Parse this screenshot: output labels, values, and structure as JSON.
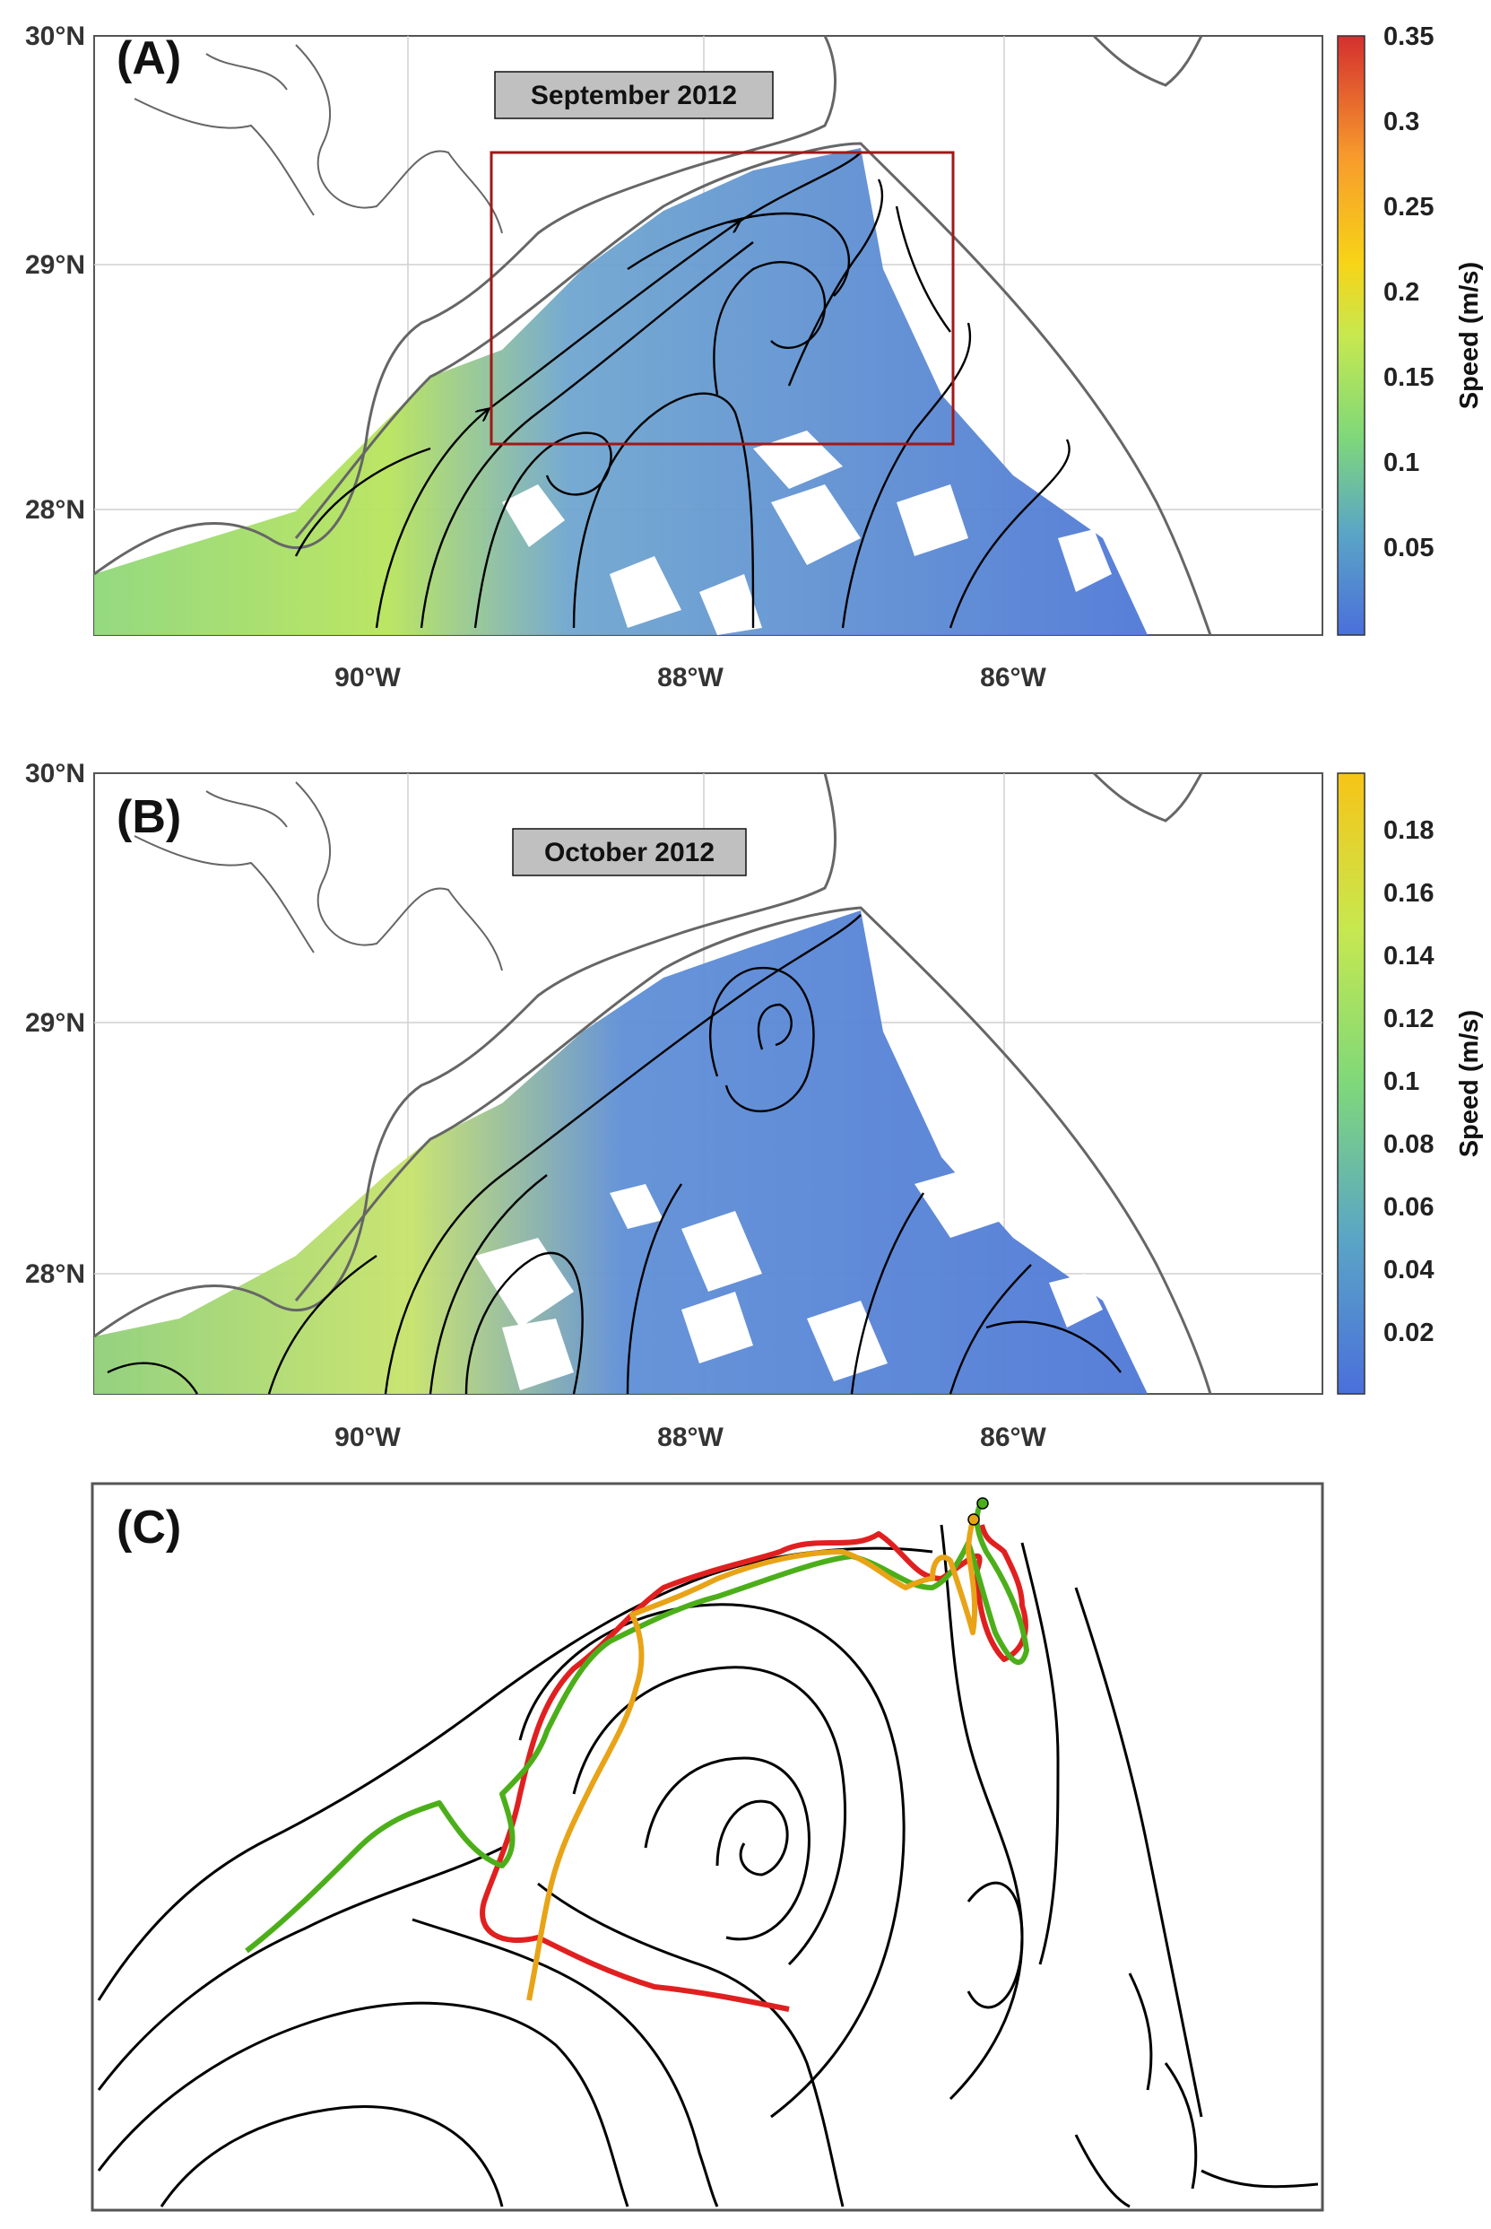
{
  "figure": {
    "panel_a": {
      "label": "(A)",
      "date": "September 2012",
      "y_ticks": [
        "30°N",
        "29°N",
        "28°N"
      ],
      "x_ticks": [
        "90°W",
        "88°W",
        "86°W"
      ],
      "colorbar": {
        "label": "Speed (m/s)",
        "ticks": [
          "0.35",
          "0.3",
          "0.25",
          "0.2",
          "0.15",
          "0.1",
          "0.05"
        ],
        "range": [
          0,
          0.36
        ],
        "colormap": [
          "#4a6fdb",
          "#5aa5c6",
          "#7fd87a",
          "#c7e84f",
          "#f7d417",
          "#f79a2c",
          "#d42f2f"
        ]
      }
    },
    "panel_b": {
      "label": "(B)",
      "date": "October 2012",
      "y_ticks": [
        "30°N",
        "29°N",
        "28°N"
      ],
      "x_ticks": [
        "90°W",
        "88°W",
        "86°W"
      ],
      "colorbar": {
        "label": "Speed (m/s)",
        "ticks": [
          "0.18",
          "0.16",
          "0.14",
          "0.12",
          "0.1",
          "0.08",
          "0.06",
          "0.04",
          "0.02"
        ],
        "range": [
          0,
          0.198
        ],
        "colormap": [
          "#4a6fdb",
          "#5aa5c6",
          "#7fd87a",
          "#c7e84f",
          "#f7c417"
        ]
      }
    },
    "panel_c": {
      "label": "(C)",
      "drifter_colors": [
        "#e02020",
        "#4caf1a",
        "#e8a317"
      ]
    },
    "colors": {
      "speed_low": "#4a6fdb",
      "speed_mid": "#8fd77a",
      "coastline": "#666666",
      "streamline": "#000000",
      "box": "#a01818",
      "date_box": "#c0c0c0"
    }
  }
}
